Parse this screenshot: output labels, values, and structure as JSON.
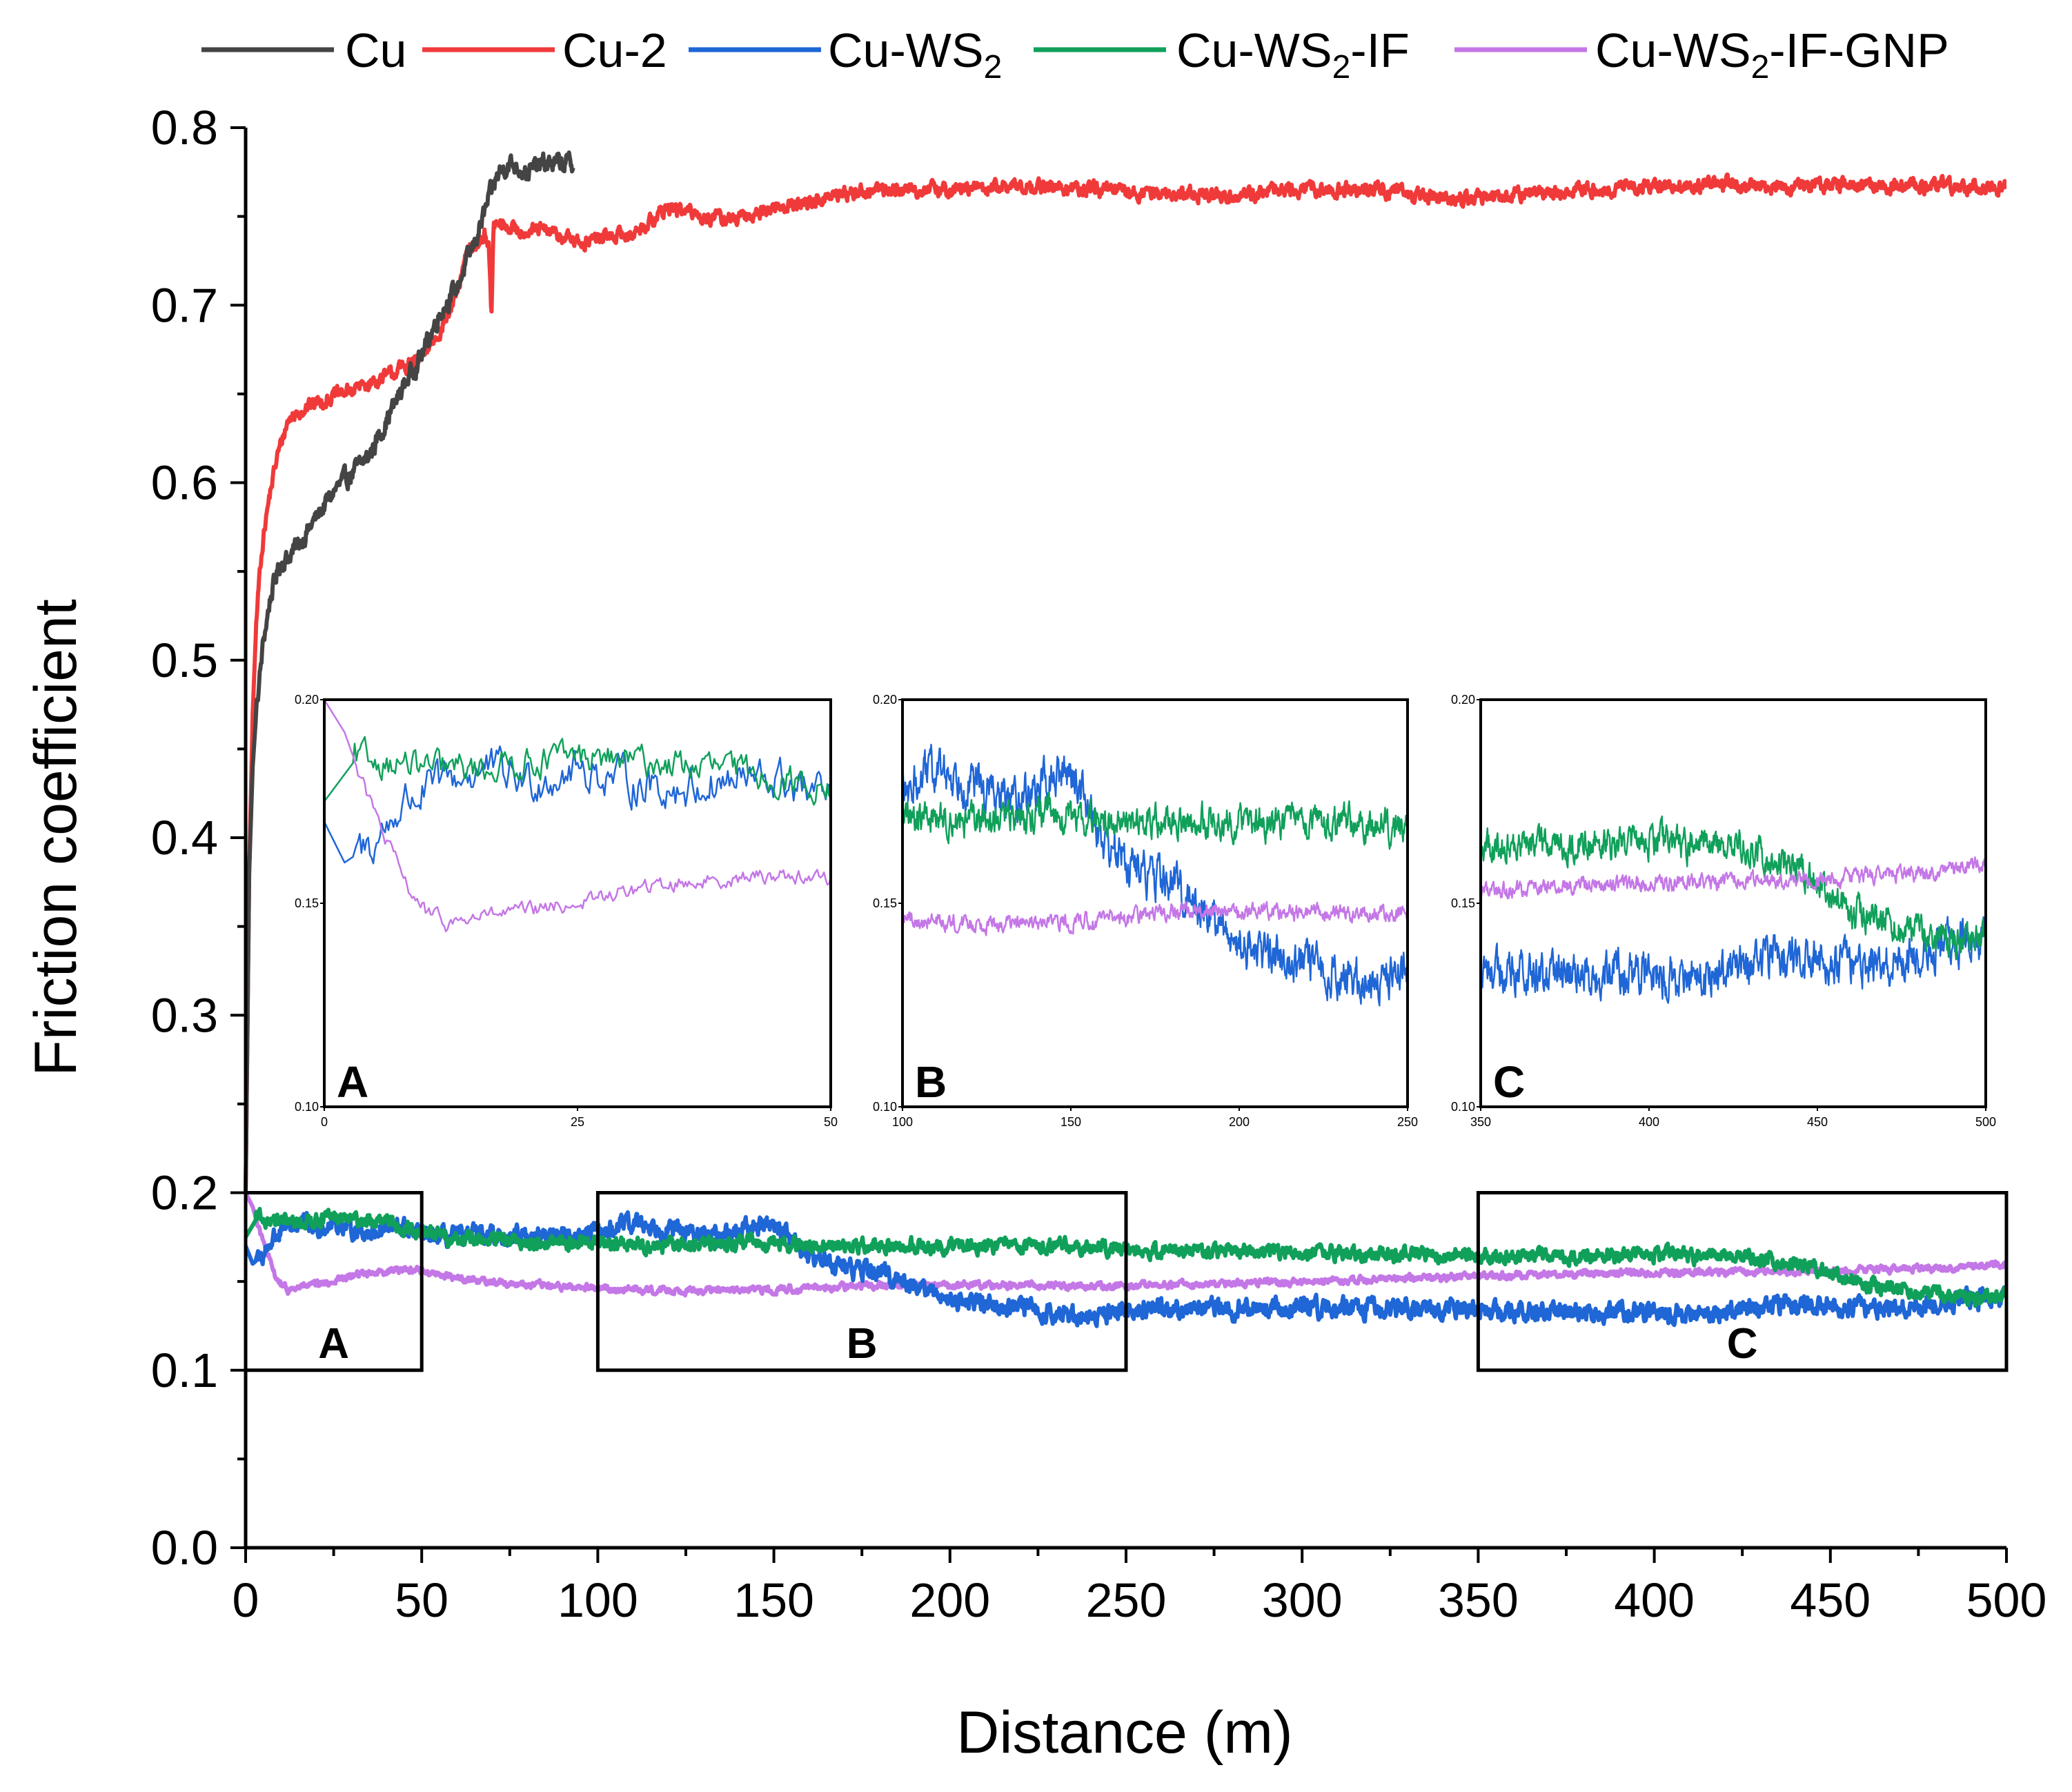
{
  "chart_data": {
    "type": "line",
    "title": "",
    "xlabel": "Distance (m)",
    "ylabel": "Friction coefficient",
    "xlim": [
      0,
      500
    ],
    "ylim": [
      0,
      0.8
    ],
    "xticks": [
      "0",
      "50",
      "100",
      "150",
      "200",
      "250",
      "300",
      "350",
      "400",
      "450",
      "500"
    ],
    "yticks": [
      "0.0",
      "0.1",
      "0.2",
      "0.3",
      "0.4",
      "0.5",
      "0.6",
      "0.7",
      "0.8"
    ],
    "grid": false,
    "legend_position": "top",
    "series": [
      {
        "name": "Cu",
        "legend_parts": [
          "Cu"
        ],
        "color": "#444444",
        "noise": 0.004,
        "x": [
          0,
          1,
          2,
          3,
          5,
          7,
          9,
          10,
          12,
          15,
          20,
          25,
          30,
          35,
          40,
          45,
          50,
          55,
          60,
          65,
          70,
          72,
          75,
          80,
          85,
          90,
          93
        ],
        "y": [
          0.2,
          0.38,
          0.44,
          0.47,
          0.51,
          0.535,
          0.55,
          0.555,
          0.558,
          0.565,
          0.58,
          0.595,
          0.605,
          0.615,
          0.635,
          0.655,
          0.672,
          0.695,
          0.71,
          0.735,
          0.765,
          0.775,
          0.78,
          0.775,
          0.78,
          0.78,
          0.78
        ]
      },
      {
        "name": "Cu-2",
        "legend_parts": [
          "Cu-2"
        ],
        "color": "#f03a3a",
        "noise": 0.003,
        "x": [
          0,
          1,
          2,
          3,
          4,
          5,
          7,
          9,
          12,
          15,
          20,
          30,
          40,
          50,
          55,
          60,
          63,
          66,
          68,
          69,
          69.8,
          70.4,
          72,
          78,
          85,
          95,
          100,
          110,
          120,
          130,
          140,
          150,
          160,
          170,
          180,
          200,
          220,
          240,
          260,
          280,
          300,
          320,
          340,
          360,
          380,
          400,
          420,
          440,
          460,
          480,
          500
        ],
        "y": [
          0.2,
          0.38,
          0.47,
          0.52,
          0.55,
          0.57,
          0.595,
          0.615,
          0.635,
          0.64,
          0.645,
          0.652,
          0.66,
          0.67,
          0.685,
          0.705,
          0.73,
          0.735,
          0.74,
          0.735,
          0.692,
          0.745,
          0.745,
          0.742,
          0.742,
          0.735,
          0.738,
          0.74,
          0.755,
          0.75,
          0.748,
          0.755,
          0.758,
          0.763,
          0.765,
          0.765,
          0.767,
          0.765,
          0.763,
          0.762,
          0.765,
          0.765,
          0.76,
          0.762,
          0.765,
          0.767,
          0.768,
          0.767,
          0.767,
          0.768,
          0.766
        ]
      },
      {
        "name": "Cu-WS2",
        "legend_parts": [
          "Cu-WS",
          "2",
          ""
        ],
        "color": "#1f66d6",
        "noise": 0.004,
        "x": [
          0,
          2,
          5,
          8,
          12,
          16,
          20,
          25,
          30,
          35,
          40,
          45,
          50,
          60,
          70,
          80,
          90,
          100,
          110,
          120,
          130,
          140,
          150,
          155,
          160,
          170,
          180,
          190,
          200,
          210,
          220,
          230,
          240,
          250,
          270,
          300,
          330,
          350,
          370,
          390,
          410,
          430,
          440,
          450,
          470,
          490,
          500
        ],
        "y": [
          0.17,
          0.16,
          0.165,
          0.175,
          0.18,
          0.183,
          0.18,
          0.183,
          0.18,
          0.178,
          0.18,
          0.18,
          0.175,
          0.175,
          0.176,
          0.176,
          0.176,
          0.177,
          0.183,
          0.18,
          0.175,
          0.178,
          0.183,
          0.175,
          0.165,
          0.158,
          0.155,
          0.148,
          0.14,
          0.138,
          0.135,
          0.132,
          0.13,
          0.135,
          0.135,
          0.135,
          0.135,
          0.133,
          0.132,
          0.133,
          0.132,
          0.135,
          0.138,
          0.136,
          0.135,
          0.14,
          0.142
        ]
      },
      {
        "name": "Cu-WS2-IF",
        "legend_parts": [
          "Cu-WS",
          "2",
          "-IF"
        ],
        "color": "#10a05a",
        "noise": 0.003,
        "x": [
          0,
          3,
          6,
          10,
          15,
          20,
          25,
          30,
          40,
          50,
          60,
          80,
          100,
          120,
          140,
          160,
          180,
          200,
          230,
          250,
          300,
          350,
          380,
          400,
          420,
          430,
          440,
          450,
          460,
          470,
          480,
          490,
          500
        ],
        "y": [
          0.175,
          0.185,
          0.185,
          0.183,
          0.183,
          0.185,
          0.186,
          0.185,
          0.183,
          0.178,
          0.174,
          0.172,
          0.172,
          0.17,
          0.172,
          0.17,
          0.17,
          0.17,
          0.17,
          0.168,
          0.166,
          0.164,
          0.165,
          0.165,
          0.164,
          0.163,
          0.16,
          0.155,
          0.148,
          0.146,
          0.143,
          0.14,
          0.142
        ]
      },
      {
        "name": "Cu-WS2-IF-GNP",
        "legend_parts": [
          "Cu-WS",
          "2",
          "-IF-GNP"
        ],
        "color": "#c477e6",
        "noise": 0.0015,
        "x": [
          0,
          2,
          4,
          6,
          8,
          10,
          12,
          14,
          16,
          20,
          25,
          30,
          35,
          40,
          45,
          50,
          60,
          80,
          100,
          120,
          140,
          160,
          180,
          200,
          220,
          240,
          260,
          300,
          350,
          400,
          450,
          490,
          500
        ],
        "y": [
          0.2,
          0.192,
          0.178,
          0.166,
          0.155,
          0.148,
          0.145,
          0.146,
          0.147,
          0.148,
          0.15,
          0.153,
          0.155,
          0.156,
          0.157,
          0.156,
          0.152,
          0.148,
          0.146,
          0.145,
          0.145,
          0.146,
          0.148,
          0.148,
          0.148,
          0.147,
          0.148,
          0.15,
          0.153,
          0.155,
          0.156,
          0.158,
          0.16
        ]
      }
    ],
    "regions": [
      {
        "label": "A",
        "x_range": [
          0,
          50
        ],
        "y_range": [
          0.1,
          0.2
        ]
      },
      {
        "label": "B",
        "x_range": [
          100,
          250
        ],
        "y_range": [
          0.1,
          0.2
        ]
      },
      {
        "label": "C",
        "x_range": [
          350,
          500
        ],
        "y_range": [
          0.1,
          0.2
        ]
      }
    ],
    "insets": [
      {
        "label": "A",
        "xlim": [
          0,
          50
        ],
        "ylim": [
          0.1,
          0.2
        ],
        "xticks": [
          "0",
          "25",
          "50"
        ],
        "yticks": [
          "0.10",
          "0.15",
          "0.20"
        ],
        "series_names": [
          "Cu-WS2",
          "Cu-WS2-IF",
          "Cu-WS2-IF-GNP"
        ]
      },
      {
        "label": "B",
        "xlim": [
          100,
          250
        ],
        "ylim": [
          0.1,
          0.2
        ],
        "xticks": [
          "100",
          "150",
          "200",
          "250"
        ],
        "yticks": [
          "0.10",
          "0.15",
          "0.20"
        ],
        "series_names": [
          "Cu-WS2",
          "Cu-WS2-IF",
          "Cu-WS2-IF-GNP"
        ]
      },
      {
        "label": "C",
        "xlim": [
          350,
          500
        ],
        "ylim": [
          0.1,
          0.2
        ],
        "xticks": [
          "350",
          "400",
          "450",
          "500"
        ],
        "yticks": [
          "0.10",
          "0.15",
          "0.20"
        ],
        "series_names": [
          "Cu-WS2",
          "Cu-WS2-IF",
          "Cu-WS2-IF-GNP"
        ]
      }
    ]
  }
}
